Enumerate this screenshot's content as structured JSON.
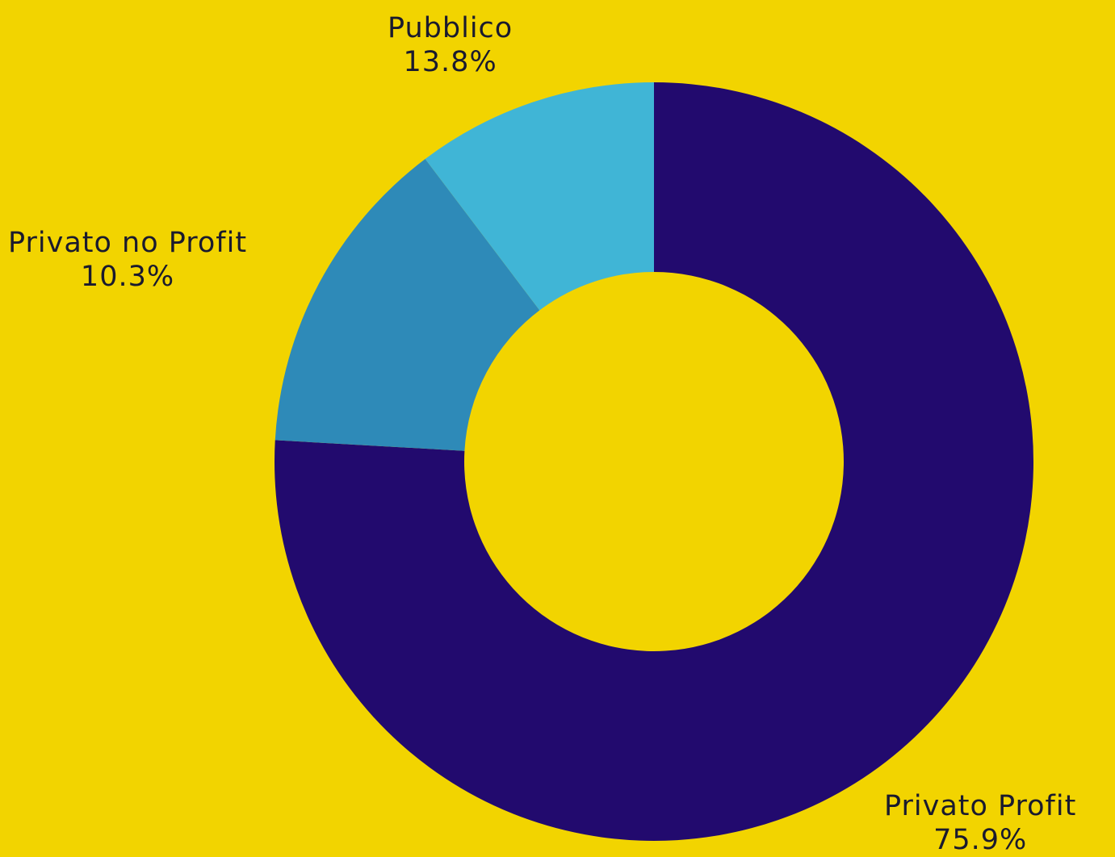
{
  "chart_data": {
    "type": "pie",
    "categories": [
      "Privato Profit",
      "Pubblico",
      "Privato no Profit"
    ],
    "values": [
      75.9,
      13.8,
      10.3
    ],
    "value_labels": [
      "75.9%",
      "13.8%",
      "10.3%"
    ],
    "colors": [
      "#220A6E",
      "#2E8AB8",
      "#40B5D6"
    ],
    "legend": "none",
    "start_angle_deg": 0,
    "direction": "clockwise"
  },
  "theme": {
    "background": "#F2D400",
    "text_color": "#1a1a2e"
  }
}
